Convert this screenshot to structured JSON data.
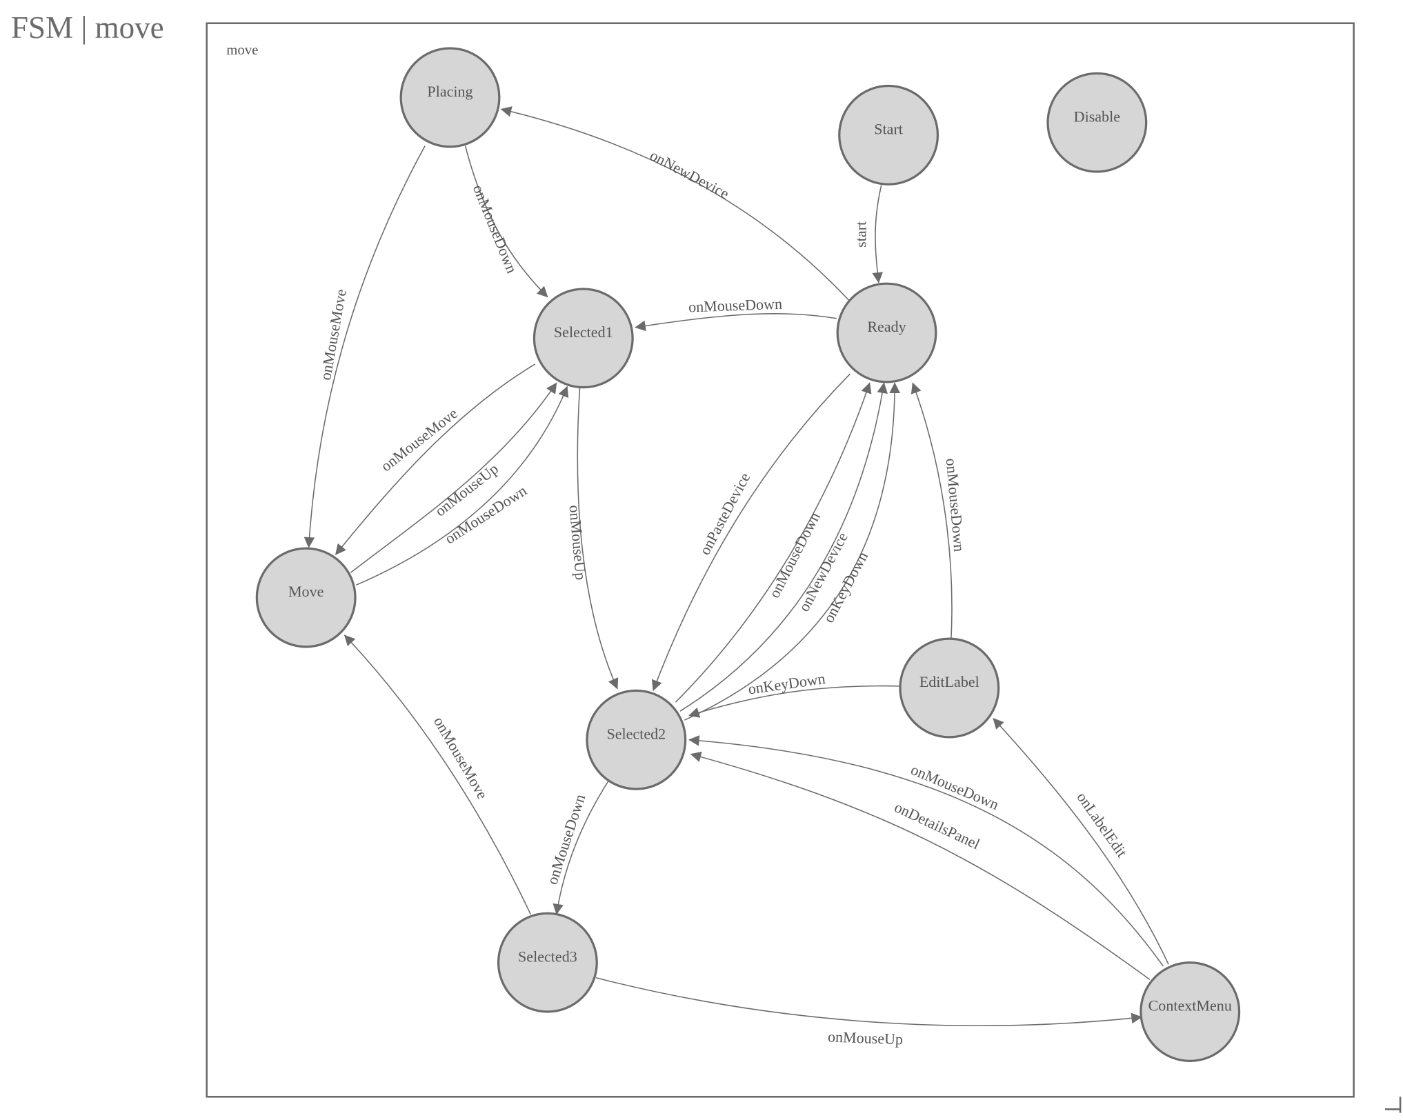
{
  "title": "FSM | move",
  "fsm_name": "move",
  "colors": {
    "node_fill": "#d6d6d6",
    "stroke": "#6b6b6b",
    "text": "#555555"
  },
  "nodes": [
    {
      "id": "Placing",
      "label": "Placing"
    },
    {
      "id": "Start",
      "label": "Start"
    },
    {
      "id": "Disable",
      "label": "Disable"
    },
    {
      "id": "Selected1",
      "label": "Selected1"
    },
    {
      "id": "Ready",
      "label": "Ready"
    },
    {
      "id": "Move",
      "label": "Move"
    },
    {
      "id": "EditLabel",
      "label": "EditLabel"
    },
    {
      "id": "Selected2",
      "label": "Selected2"
    },
    {
      "id": "Selected3",
      "label": "Selected3"
    },
    {
      "id": "ContextMenu",
      "label": "ContextMenu"
    }
  ],
  "edges": [
    {
      "from": "Start",
      "to": "Ready",
      "label": "start"
    },
    {
      "from": "Ready",
      "to": "Placing",
      "label": "onNewDevice"
    },
    {
      "from": "Placing",
      "to": "Selected1",
      "label": "onMouseDown"
    },
    {
      "from": "Placing",
      "to": "Move",
      "label": "onMouseMove"
    },
    {
      "from": "Ready",
      "to": "Selected1",
      "label": "onMouseDown"
    },
    {
      "from": "Selected1",
      "to": "Move",
      "label": "onMouseMove"
    },
    {
      "from": "Move",
      "to": "Selected1",
      "label": "onMouseUp"
    },
    {
      "from": "Move",
      "to": "Selected1",
      "label": "onMouseDown"
    },
    {
      "from": "Selected1",
      "to": "Selected2",
      "label": "onMouseUp"
    },
    {
      "from": "Ready",
      "to": "Selected2",
      "label": "onPasteDevice"
    },
    {
      "from": "Selected2",
      "to": "Ready",
      "label": "onMouseDown"
    },
    {
      "from": "Selected2",
      "to": "Ready",
      "label": "onNewDevice"
    },
    {
      "from": "Selected2",
      "to": "Ready",
      "label": "onKeyDown"
    },
    {
      "from": "EditLabel",
      "to": "Ready",
      "label": "onMouseDown"
    },
    {
      "from": "EditLabel",
      "to": "Selected2",
      "label": "onKeyDown"
    },
    {
      "from": "ContextMenu",
      "to": "Selected2",
      "label": "onMouseDown"
    },
    {
      "from": "ContextMenu",
      "to": "Selected2",
      "label": "onDetailsPanel"
    },
    {
      "from": "ContextMenu",
      "to": "EditLabel",
      "label": "onLabelEdit"
    },
    {
      "from": "Selected2",
      "to": "Selected3",
      "label": "onMouseDown"
    },
    {
      "from": "Selected3",
      "to": "Move",
      "label": "onMouseMove"
    },
    {
      "from": "Selected3",
      "to": "ContextMenu",
      "label": "onMouseUp"
    }
  ]
}
